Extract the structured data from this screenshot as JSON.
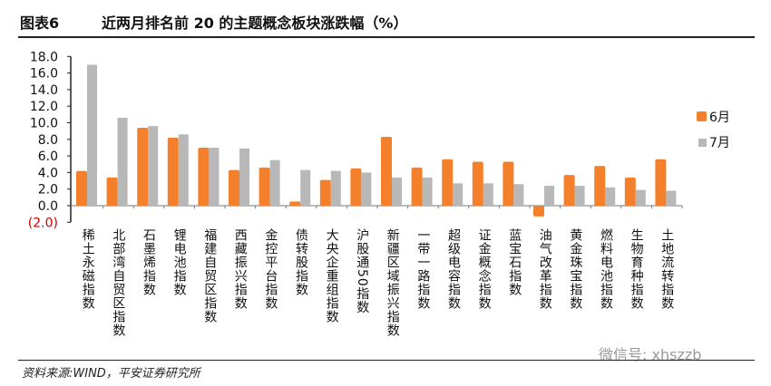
{
  "header": {
    "figure_no": "图表6",
    "title": "近两月排名前 20 的主题概念板块涨跌幅（%）"
  },
  "footer": {
    "source": "资料来源:WIND，平安证券研究所",
    "watermark": "微信号: xhszzb"
  },
  "chart_data": {
    "type": "bar",
    "title": "近两月排名前 20 的主题概念板块涨跌幅（%）",
    "xlabel": "",
    "ylabel": "",
    "ylim": [
      -2,
      18
    ],
    "yticks": [
      -2,
      0,
      2,
      4,
      6,
      8,
      10,
      12,
      14,
      16,
      18
    ],
    "ytick_labels": [
      "(2.0)",
      "0.0",
      "2.0",
      "4.0",
      "6.0",
      "8.0",
      "10.0",
      "12.0",
      "14.0",
      "16.0",
      "18.0"
    ],
    "legend_position": "right",
    "categories": [
      "稀土永磁指数",
      "北部湾自贸区指数",
      "石墨烯指数",
      "锂电池指数",
      "福建自贸区指数",
      "西藏振兴指数",
      "金控平台指数",
      "债转股指数",
      "大央企重组指数",
      "沪股通50指数",
      "新疆区域振兴指数",
      "一带一路指数",
      "超级电容指数",
      "证金概念指数",
      "蓝宝石指数",
      "油气改革指数",
      "黄金珠宝指数",
      "燃料电池指数",
      "生物育种指数",
      "土地流转指数"
    ],
    "series": [
      {
        "name": "6月",
        "color": "#F5802B",
        "values": [
          4.2,
          3.4,
          9.4,
          8.2,
          7.0,
          4.3,
          4.6,
          0.5,
          3.1,
          4.5,
          8.3,
          4.6,
          5.6,
          5.3,
          5.3,
          -1.3,
          3.7,
          4.8,
          3.4,
          5.6
        ]
      },
      {
        "name": "7月",
        "color": "#B8B8B8",
        "values": [
          17.0,
          10.6,
          9.6,
          8.6,
          7.0,
          6.9,
          5.5,
          4.3,
          4.2,
          4.0,
          3.4,
          3.4,
          2.7,
          2.7,
          2.6,
          2.4,
          2.4,
          2.2,
          1.9,
          1.8
        ]
      }
    ]
  }
}
